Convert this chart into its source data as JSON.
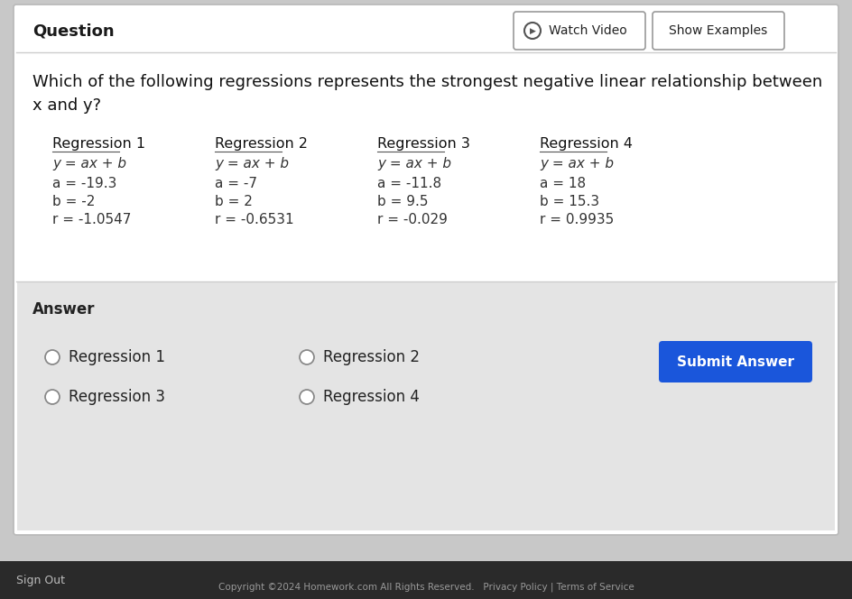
{
  "bg_color": "#c8c8c8",
  "question_label": "Question",
  "watch_video": "Watch Video",
  "show_examples": "Show Examples",
  "main_question_line1": "Which of the following regressions represents the strongest negative linear relationship between",
  "main_question_line2": "x and y?",
  "regressions": [
    {
      "title": "Regression 1",
      "eq": "y = ax + b",
      "a": "a = -19.3",
      "b": "b = -2",
      "r": "r = -1.0547"
    },
    {
      "title": "Regression 2",
      "eq": "y = ax + b",
      "a": "a = -7",
      "b": "b = 2",
      "r": "r = -0.6531"
    },
    {
      "title": "Regression 3",
      "eq": "y = ax + b",
      "a": "a = -11.8",
      "b": "b = 9.5",
      "r": "r = -0.029"
    },
    {
      "title": "Regression 4",
      "eq": "y = ax + b",
      "a": "a = 18",
      "b": "b = 15.3",
      "r": "r = 0.9935"
    }
  ],
  "answer_label": "Answer",
  "options_col1": [
    "Regression 1",
    "Regression 3"
  ],
  "options_col2": [
    "Regression 2",
    "Regression 4"
  ],
  "submit_btn_text": "Submit Answer",
  "submit_btn_color": "#1a56db",
  "footer_text": "Copyright ©2024 Homework.com All Rights Reserved.   Privacy Policy | Terms of Service",
  "sign_out_text": "Sign Out"
}
